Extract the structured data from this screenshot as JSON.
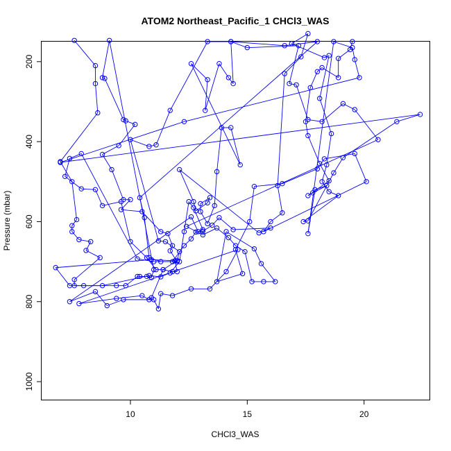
{
  "chart_data": {
    "type": "scatter",
    "title": "ATOM2 Northeast_Pacific_1 CHCl3_WAS",
    "xlabel": "CHCl3_WAS",
    "ylabel": "Pressure (mbar)",
    "xlim": [
      6.2,
      22.8
    ],
    "ylim": [
      1045,
      150
    ],
    "y_reversed": true,
    "x_ticks": [
      10,
      15,
      20
    ],
    "y_ticks": [
      200,
      400,
      600,
      800,
      1000
    ],
    "grid": false,
    "legend": "none",
    "marker": "open-circle",
    "connected": true,
    "color": "#0000ff",
    "points": [
      [
        7.6,
        147
      ],
      [
        8.5,
        210
      ],
      [
        8.5,
        255
      ],
      [
        8.6,
        328
      ],
      [
        7.0,
        450
      ],
      [
        7.5,
        500
      ],
      [
        7.7,
        595
      ],
      [
        7.5,
        610
      ],
      [
        7.5,
        625
      ],
      [
        7.8,
        645
      ],
      [
        8.3,
        650
      ],
      [
        8.1,
        672
      ],
      [
        8.7,
        690
      ],
      [
        7.6,
        745
      ],
      [
        7.6,
        760
      ],
      [
        8.0,
        760
      ],
      [
        9.4,
        760
      ],
      [
        9.8,
        760
      ],
      [
        10.3,
        737
      ],
      [
        10.4,
        737
      ],
      [
        10.7,
        737
      ],
      [
        10.9,
        740
      ],
      [
        11.0,
        720
      ],
      [
        9.1,
        147
      ],
      [
        8.8,
        240
      ],
      [
        8.9,
        242
      ],
      [
        9.7,
        345
      ],
      [
        9.8,
        348
      ],
      [
        10.2,
        357
      ],
      [
        9.5,
        410
      ],
      [
        8.8,
        432
      ],
      [
        9.2,
        470
      ],
      [
        9.7,
        545
      ],
      [
        10.0,
        545
      ],
      [
        9.6,
        570
      ],
      [
        10.5,
        575
      ],
      [
        11.3,
        625
      ],
      [
        11.6,
        630
      ],
      [
        11.8,
        660
      ],
      [
        11.7,
        673
      ],
      [
        12.0,
        700
      ],
      [
        11.0,
        700
      ],
      [
        10.3,
        693
      ],
      [
        7.9,
        430
      ],
      [
        7.4,
        442
      ],
      [
        7.2,
        487
      ],
      [
        7.9,
        518
      ],
      [
        8.5,
        520
      ],
      [
        8.8,
        560
      ],
      [
        9.6,
        550
      ],
      [
        10.0,
        650
      ],
      [
        10.7,
        690
      ],
      [
        11.1,
        720
      ],
      [
        11.4,
        720
      ],
      [
        11.8,
        725
      ],
      [
        12.0,
        725
      ],
      [
        11.9,
        698
      ],
      [
        10.9,
        695
      ],
      [
        6.8,
        715
      ],
      [
        7.4,
        760
      ],
      [
        8.8,
        760
      ],
      [
        10.8,
        735
      ],
      [
        11.3,
        738
      ],
      [
        11.7,
        728
      ],
      [
        12.1,
        700
      ],
      [
        12.3,
        625
      ],
      [
        12.5,
        550
      ],
      [
        12.7,
        565
      ],
      [
        13.1,
        620
      ],
      [
        12.9,
        625
      ],
      [
        12.6,
        588
      ],
      [
        7.4,
        800
      ],
      [
        8.5,
        775
      ],
      [
        9.0,
        810
      ],
      [
        9.7,
        795
      ],
      [
        11.0,
        795
      ],
      [
        11.2,
        818
      ],
      [
        11.3,
        780
      ],
      [
        11.8,
        785
      ],
      [
        12.6,
        768
      ],
      [
        13.4,
        768
      ],
      [
        14.1,
        725
      ],
      [
        14.6,
        670
      ],
      [
        7.8,
        805
      ],
      [
        9.4,
        792
      ],
      [
        10.5,
        785
      ],
      [
        10.8,
        795
      ],
      [
        10.9,
        790
      ],
      [
        11.4,
        720
      ],
      [
        12.0,
        697
      ],
      [
        12.1,
        675
      ],
      [
        11.5,
        650
      ],
      [
        11.2,
        648
      ],
      [
        10.0,
        395
      ],
      [
        10.8,
        412
      ],
      [
        11.1,
        408
      ],
      [
        11.7,
        322
      ],
      [
        13.3,
        150
      ],
      [
        14.3,
        150
      ],
      [
        16.6,
        160
      ],
      [
        18.0,
        150
      ],
      [
        10.4,
        540
      ],
      [
        10.6,
        590
      ],
      [
        10.8,
        690
      ],
      [
        11.3,
        700
      ],
      [
        11.8,
        700
      ],
      [
        12.3,
        660
      ],
      [
        12.6,
        643
      ],
      [
        12.8,
        626
      ],
      [
        13.1,
        624
      ],
      [
        13.5,
        609
      ],
      [
        13.8,
        590
      ],
      [
        14.4,
        620
      ],
      [
        16.0,
        616
      ],
      [
        15.5,
        628
      ],
      [
        12.1,
        470
      ],
      [
        12.7,
        550
      ],
      [
        12.8,
        573
      ],
      [
        13.3,
        553
      ],
      [
        13.4,
        540
      ],
      [
        13.0,
        555
      ],
      [
        13.0,
        575
      ],
      [
        13.3,
        605
      ],
      [
        13.6,
        560
      ],
      [
        13.7,
        475
      ],
      [
        13.9,
        365
      ],
      [
        14.3,
        365
      ],
      [
        14.7,
        458
      ],
      [
        12.6,
        205
      ],
      [
        13.3,
        245
      ],
      [
        13.2,
        322
      ],
      [
        13.8,
        205
      ],
      [
        14.2,
        240
      ],
      [
        14.4,
        255
      ],
      [
        14.3,
        150
      ],
      [
        15.0,
        165
      ],
      [
        17.2,
        160
      ],
      [
        16.8,
        255
      ],
      [
        17.1,
        258
      ],
      [
        17.6,
        345
      ],
      [
        18.2,
        350
      ],
      [
        19.1,
        305
      ],
      [
        19.6,
        320
      ],
      [
        20.6,
        395
      ],
      [
        12.4,
        612
      ],
      [
        13.1,
        633
      ],
      [
        13.7,
        616
      ],
      [
        14.2,
        640
      ],
      [
        14.5,
        660
      ],
      [
        14.9,
        675
      ],
      [
        15.2,
        750
      ],
      [
        15.7,
        750
      ],
      [
        16.2,
        750
      ],
      [
        15.6,
        705
      ],
      [
        15.3,
        668
      ],
      [
        14.1,
        625
      ],
      [
        13.7,
        750
      ],
      [
        14.8,
        730
      ],
      [
        14.5,
        670
      ],
      [
        15.1,
        600
      ],
      [
        15.3,
        512
      ],
      [
        16.5,
        505
      ],
      [
        18.0,
        468
      ],
      [
        18.3,
        443
      ],
      [
        19.6,
        430
      ],
      [
        20.1,
        500
      ],
      [
        15.7,
        625
      ],
      [
        16.0,
        600
      ],
      [
        16.5,
        578
      ],
      [
        16.3,
        510
      ],
      [
        16.6,
        230
      ],
      [
        17.3,
        188
      ],
      [
        17.6,
        130
      ],
      [
        16.9,
        155
      ],
      [
        18.3,
        190
      ],
      [
        18.5,
        185
      ],
      [
        18.1,
        292
      ],
      [
        18.6,
        380
      ],
      [
        18.4,
        458
      ],
      [
        18.2,
        500
      ],
      [
        18.5,
        525
      ],
      [
        18.9,
        535
      ],
      [
        17.4,
        600
      ],
      [
        17.6,
        598
      ],
      [
        18.7,
        478
      ],
      [
        19.1,
        440
      ],
      [
        21.4,
        350
      ],
      [
        22.4,
        332
      ],
      [
        7.0,
        452
      ],
      [
        12.3,
        350
      ],
      [
        19.8,
        240
      ],
      [
        19.6,
        195
      ],
      [
        19.5,
        165
      ],
      [
        18.7,
        150
      ],
      [
        17.6,
        630
      ],
      [
        17.9,
        520
      ],
      [
        18.4,
        510
      ],
      [
        17.8,
        528
      ],
      [
        17.6,
        535
      ],
      [
        18.5,
        498
      ],
      [
        18.1,
        455
      ],
      [
        17.6,
        385
      ],
      [
        17.5,
        350
      ],
      [
        17.7,
        265
      ],
      [
        18.0,
        225
      ],
      [
        18.2,
        215
      ],
      [
        18.9,
        240
      ],
      [
        18.9,
        192
      ],
      [
        19.4,
        170
      ],
      [
        19.5,
        150
      ]
    ]
  }
}
